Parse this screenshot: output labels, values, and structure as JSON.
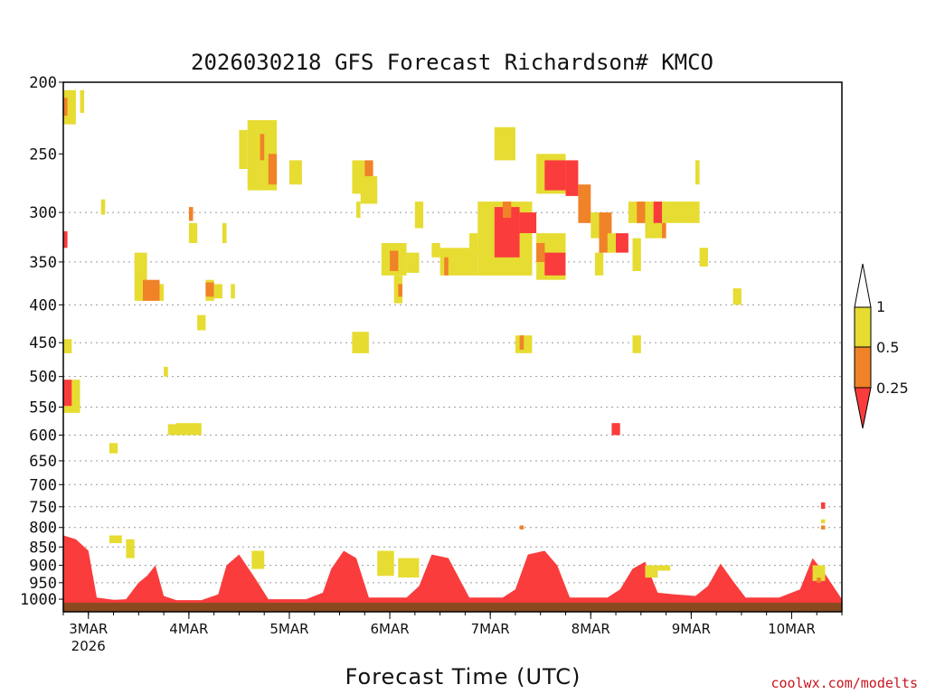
{
  "chart_data": {
    "type": "heatmap",
    "title": "2026030218 GFS Forecast Richardson# KMCO",
    "xlabel": "Forecast Time (UTC)",
    "ylabel": "",
    "credit": "coolwx.com/modelts",
    "y_scale": "log-pressure",
    "y_inverted": true,
    "ylim": [
      1040,
      200
    ],
    "y_ticks": [
      200,
      250,
      300,
      350,
      400,
      450,
      500,
      550,
      600,
      650,
      700,
      750,
      800,
      850,
      900,
      950,
      1000
    ],
    "y_grid": [
      300,
      350,
      400,
      450,
      500,
      550,
      600,
      650,
      700,
      750,
      800,
      850,
      900,
      950
    ],
    "xlim": [
      "2026-03-02T18",
      "2026-03-10T12"
    ],
    "x_ticks": [
      {
        "date": "2026-03-03T00",
        "label": "3MAR",
        "sublabel": "2026"
      },
      {
        "date": "2026-03-04T00",
        "label": "4MAR",
        "sublabel": ""
      },
      {
        "date": "2026-03-05T00",
        "label": "5MAR",
        "sublabel": ""
      },
      {
        "date": "2026-03-06T00",
        "label": "6MAR",
        "sublabel": ""
      },
      {
        "date": "2026-03-07T00",
        "label": "7MAR",
        "sublabel": ""
      },
      {
        "date": "2026-03-08T00",
        "label": "8MAR",
        "sublabel": ""
      },
      {
        "date": "2026-03-09T00",
        "label": "9MAR",
        "sublabel": ""
      },
      {
        "date": "2026-03-10T00",
        "label": "10MAR",
        "sublabel": ""
      }
    ],
    "legend": {
      "placement": "right",
      "thresholds": [
        "1",
        "0.5",
        "0.25"
      ],
      "bins": [
        {
          "range": "above 1",
          "color": "#ffffff"
        },
        {
          "range": "0.5 to 1",
          "color": "#e6dc32"
        },
        {
          "range": "0.25 to 0.5",
          "color": "#f08228"
        },
        {
          "range": "below 0.25",
          "color": "#fa3c3c"
        }
      ]
    },
    "ground_color": "#8b4a1e",
    "colors": {
      "low": "#fa3c3c",
      "mid": "#f08228",
      "high": "#e6dc32"
    },
    "regions": [
      {
        "cls": "high",
        "t0": "2026-03-02T18",
        "t1": "2026-03-02T21",
        "p0": 205,
        "p1": 228
      },
      {
        "cls": "high",
        "t0": "2026-03-02T22",
        "t1": "2026-03-02T23",
        "p0": 205,
        "p1": 220
      },
      {
        "cls": "mid",
        "t0": "2026-03-02T18",
        "t1": "2026-03-02T19",
        "p0": 210,
        "p1": 222
      },
      {
        "cls": "low",
        "t0": "2026-03-02T18",
        "t1": "2026-03-02T19",
        "p0": 318,
        "p1": 335
      },
      {
        "cls": "high",
        "t0": "2026-03-02T18",
        "t1": "2026-03-02T20",
        "p0": 445,
        "p1": 465
      },
      {
        "cls": "high",
        "t0": "2026-03-02T18",
        "t1": "2026-03-02T22",
        "p0": 505,
        "p1": 560
      },
      {
        "cls": "low",
        "t0": "2026-03-02T18",
        "t1": "2026-03-02T20",
        "p0": 505,
        "p1": 548
      },
      {
        "cls": "high",
        "t0": "2026-03-03T03",
        "t1": "2026-03-03T04",
        "p0": 288,
        "p1": 302
      },
      {
        "cls": "high",
        "t0": "2026-03-03T05",
        "t1": "2026-03-03T07",
        "p0": 615,
        "p1": 635
      },
      {
        "cls": "high",
        "t0": "2026-03-03T11",
        "t1": "2026-03-03T14",
        "p0": 340,
        "p1": 395
      },
      {
        "cls": "mid",
        "t0": "2026-03-03T13",
        "t1": "2026-03-03T17",
        "p0": 370,
        "p1": 395
      },
      {
        "cls": "high",
        "t0": "2026-03-03T17",
        "t1": "2026-03-03T18",
        "p0": 375,
        "p1": 395
      },
      {
        "cls": "high",
        "t0": "2026-03-03T18",
        "t1": "2026-03-03T19",
        "p0": 485,
        "p1": 500
      },
      {
        "cls": "high",
        "t0": "2026-03-03T19",
        "t1": "2026-03-03T22",
        "p0": 580,
        "p1": 600
      },
      {
        "cls": "high",
        "t0": "2026-03-03T21",
        "t1": "2026-03-04T03",
        "p0": 578,
        "p1": 600
      },
      {
        "cls": "high",
        "t0": "2026-03-04T00",
        "t1": "2026-03-04T02",
        "p0": 310,
        "p1": 330
      },
      {
        "cls": "mid",
        "t0": "2026-03-04T00",
        "t1": "2026-03-04T01",
        "p0": 295,
        "p1": 308
      },
      {
        "cls": "high",
        "t0": "2026-03-04T02",
        "t1": "2026-03-04T04",
        "p0": 413,
        "p1": 433
      },
      {
        "cls": "high",
        "t0": "2026-03-04T04",
        "t1": "2026-03-04T06",
        "p0": 370,
        "p1": 395
      },
      {
        "cls": "mid",
        "t0": "2026-03-04T04",
        "t1": "2026-03-04T06",
        "p0": 373,
        "p1": 390
      },
      {
        "cls": "high",
        "t0": "2026-03-04T06",
        "t1": "2026-03-04T08",
        "p0": 375,
        "p1": 392
      },
      {
        "cls": "high",
        "t0": "2026-03-04T08",
        "t1": "2026-03-04T09",
        "p0": 310,
        "p1": 330
      },
      {
        "cls": "high",
        "t0": "2026-03-04T10",
        "t1": "2026-03-04T11",
        "p0": 375,
        "p1": 392
      },
      {
        "cls": "high",
        "t0": "2026-03-04T12",
        "t1": "2026-03-04T14",
        "p0": 232,
        "p1": 262
      },
      {
        "cls": "high",
        "t0": "2026-03-04T14",
        "t1": "2026-03-04T21",
        "p0": 225,
        "p1": 280
      },
      {
        "cls": "mid",
        "t0": "2026-03-04T17",
        "t1": "2026-03-04T18",
        "p0": 235,
        "p1": 255
      },
      {
        "cls": "mid",
        "t0": "2026-03-04T19",
        "t1": "2026-03-04T21",
        "p0": 250,
        "p1": 275
      },
      {
        "cls": "high",
        "t0": "2026-03-05T00",
        "t1": "2026-03-05T03",
        "p0": 255,
        "p1": 275
      },
      {
        "cls": "high",
        "t0": "2026-03-05T15",
        "t1": "2026-03-05T18",
        "p0": 255,
        "p1": 283
      },
      {
        "cls": "mid",
        "t0": "2026-03-05T18",
        "t1": "2026-03-05T20",
        "p0": 255,
        "p1": 270
      },
      {
        "cls": "high",
        "t0": "2026-03-05T17",
        "t1": "2026-03-05T21",
        "p0": 268,
        "p1": 292
      },
      {
        "cls": "high",
        "t0": "2026-03-05T16",
        "t1": "2026-03-05T17",
        "p0": 290,
        "p1": 305
      },
      {
        "cls": "high",
        "t0": "2026-03-05T15",
        "t1": "2026-03-05T19",
        "p0": 435,
        "p1": 465
      },
      {
        "cls": "high",
        "t0": "2026-03-05T22",
        "t1": "2026-03-06T04",
        "p0": 330,
        "p1": 365
      },
      {
        "cls": "mid",
        "t0": "2026-03-06T00",
        "t1": "2026-03-06T02",
        "p0": 338,
        "p1": 360
      },
      {
        "cls": "high",
        "t0": "2026-03-06T01",
        "t1": "2026-03-06T03",
        "p0": 365,
        "p1": 398
      },
      {
        "cls": "mid",
        "t0": "2026-03-06T02",
        "t1": "2026-03-06T03",
        "p0": 375,
        "p1": 390
      },
      {
        "cls": "high",
        "t0": "2026-03-06T04",
        "t1": "2026-03-06T07",
        "p0": 340,
        "p1": 362
      },
      {
        "cls": "high",
        "t0": "2026-03-06T06",
        "t1": "2026-03-06T08",
        "p0": 290,
        "p1": 315
      },
      {
        "cls": "high",
        "t0": "2026-03-06T10",
        "t1": "2026-03-06T12",
        "p0": 330,
        "p1": 345
      },
      {
        "cls": "high",
        "t0": "2026-03-06T12",
        "t1": "2026-03-06T21",
        "p0": 335,
        "p1": 365
      },
      {
        "cls": "mid",
        "t0": "2026-03-06T13",
        "t1": "2026-03-06T14",
        "p0": 345,
        "p1": 365
      },
      {
        "cls": "high",
        "t0": "2026-03-06T19",
        "t1": "2026-03-06T21",
        "p0": 320,
        "p1": 340
      },
      {
        "cls": "high",
        "t0": "2026-03-06T21",
        "t1": "2026-03-07T10",
        "p0": 290,
        "p1": 365
      },
      {
        "cls": "low",
        "t0": "2026-03-07T01",
        "t1": "2026-03-07T07",
        "p0": 295,
        "p1": 345
      },
      {
        "cls": "mid",
        "t0": "2026-03-07T03",
        "t1": "2026-03-07T05",
        "p0": 290,
        "p1": 305
      },
      {
        "cls": "low",
        "t0": "2026-03-07T07",
        "t1": "2026-03-07T11",
        "p0": 300,
        "p1": 320
      },
      {
        "cls": "high",
        "t0": "2026-03-07T01",
        "t1": "2026-03-07T06",
        "p0": 230,
        "p1": 255
      },
      {
        "cls": "high",
        "t0": "2026-03-07T11",
        "t1": "2026-03-07T18",
        "p0": 250,
        "p1": 283
      },
      {
        "cls": "low",
        "t0": "2026-03-07T13",
        "t1": "2026-03-07T18",
        "p0": 255,
        "p1": 280
      },
      {
        "cls": "high",
        "t0": "2026-03-07T11",
        "t1": "2026-03-07T18",
        "p0": 320,
        "p1": 370
      },
      {
        "cls": "low",
        "t0": "2026-03-07T13",
        "t1": "2026-03-07T18",
        "p0": 340,
        "p1": 365
      },
      {
        "cls": "mid",
        "t0": "2026-03-07T11",
        "t1": "2026-03-07T13",
        "p0": 330,
        "p1": 350
      },
      {
        "cls": "low",
        "t0": "2026-03-07T18",
        "t1": "2026-03-07T21",
        "p0": 255,
        "p1": 285
      },
      {
        "cls": "mid",
        "t0": "2026-03-07T21",
        "t1": "2026-03-08T00",
        "p0": 275,
        "p1": 310
      },
      {
        "cls": "high",
        "t0": "2026-03-08T00",
        "t1": "2026-03-08T02",
        "p0": 300,
        "p1": 325
      },
      {
        "cls": "high",
        "t0": "2026-03-08T01",
        "t1": "2026-03-08T03",
        "p0": 340,
        "p1": 365
      },
      {
        "cls": "mid",
        "t0": "2026-03-08T02",
        "t1": "2026-03-08T05",
        "p0": 300,
        "p1": 340
      },
      {
        "cls": "high",
        "t0": "2026-03-08T04",
        "t1": "2026-03-08T06",
        "p0": 320,
        "p1": 340
      },
      {
        "cls": "low",
        "t0": "2026-03-08T06",
        "t1": "2026-03-08T09",
        "p0": 320,
        "p1": 340
      },
      {
        "cls": "high",
        "t0": "2026-03-08T09",
        "t1": "2026-03-08T13",
        "p0": 290,
        "p1": 310
      },
      {
        "cls": "mid",
        "t0": "2026-03-08T11",
        "t1": "2026-03-08T13",
        "p0": 290,
        "p1": 310
      },
      {
        "cls": "high",
        "t0": "2026-03-08T13",
        "t1": "2026-03-08T18",
        "p0": 290,
        "p1": 325
      },
      {
        "cls": "low",
        "t0": "2026-03-08T15",
        "t1": "2026-03-08T17",
        "p0": 290,
        "p1": 310
      },
      {
        "cls": "mid",
        "t0": "2026-03-08T17",
        "t1": "2026-03-08T18",
        "p0": 310,
        "p1": 325
      },
      {
        "cls": "high",
        "t0": "2026-03-08T18",
        "t1": "2026-03-09T02",
        "p0": 290,
        "p1": 310
      },
      {
        "cls": "high",
        "t0": "2026-03-09T01",
        "t1": "2026-03-09T02",
        "p0": 255,
        "p1": 275
      },
      {
        "cls": "high",
        "t0": "2026-03-09T10",
        "t1": "2026-03-09T12",
        "p0": 380,
        "p1": 400
      },
      {
        "cls": "high",
        "t0": "2026-03-08T10",
        "t1": "2026-03-08T12",
        "p0": 440,
        "p1": 465
      },
      {
        "cls": "low",
        "t0": "2026-03-08T05",
        "t1": "2026-03-08T07",
        "p0": 578,
        "p1": 600
      },
      {
        "cls": "high",
        "t0": "2026-03-07T06",
        "t1": "2026-03-07T10",
        "p0": 440,
        "p1": 465
      },
      {
        "cls": "mid",
        "t0": "2026-03-07T07",
        "t1": "2026-03-07T08",
        "p0": 440,
        "p1": 460
      },
      {
        "cls": "high",
        "t0": "2026-03-08T10",
        "t1": "2026-03-08T12",
        "p0": 325,
        "p1": 360
      },
      {
        "cls": "high",
        "t0": "2026-03-09T02",
        "t1": "2026-03-09T04",
        "p0": 335,
        "p1": 355
      },
      {
        "cls": "high",
        "t0": "2026-03-10T07",
        "t1": "2026-03-10T08",
        "p0": 780,
        "p1": 790
      },
      {
        "cls": "mid",
        "t0": "2026-03-10T07",
        "t1": "2026-03-10T08",
        "p0": 795,
        "p1": 805
      },
      {
        "cls": "low",
        "t0": "2026-03-10T07",
        "t1": "2026-03-10T08",
        "p0": 740,
        "p1": 755
      },
      {
        "cls": "high",
        "t0": "2026-03-03T05",
        "t1": "2026-03-03T08",
        "p0": 820,
        "p1": 840
      },
      {
        "cls": "high",
        "t0": "2026-03-03T09",
        "t1": "2026-03-03T11",
        "p0": 830,
        "p1": 880
      },
      {
        "cls": "mid",
        "t0": "2026-03-07T07",
        "t1": "2026-03-07T08",
        "p0": 795,
        "p1": 805
      },
      {
        "cls": "high",
        "t0": "2026-03-08T13",
        "t1": "2026-03-08T16",
        "p0": 900,
        "p1": 935
      },
      {
        "cls": "high",
        "t0": "2026-03-08T16",
        "t1": "2026-03-08T19",
        "p0": 900,
        "p1": 915
      },
      {
        "cls": "high",
        "t0": "2026-03-10T05",
        "t1": "2026-03-10T08",
        "p0": 900,
        "p1": 945
      },
      {
        "cls": "mid",
        "t0": "2026-03-10T06",
        "t1": "2026-03-10T07",
        "p0": 935,
        "p1": 950
      },
      {
        "cls": "high",
        "t0": "2026-03-06T02",
        "t1": "2026-03-06T07",
        "p0": 880,
        "p1": 935
      },
      {
        "cls": "high",
        "t0": "2026-03-05T21",
        "t1": "2026-03-06T01",
        "p0": 860,
        "p1": 930
      },
      {
        "cls": "high",
        "t0": "2026-03-04T15",
        "t1": "2026-03-04T18",
        "p0": 860,
        "p1": 910
      }
    ],
    "pbl_envelope_hpa": [
      [
        "2026-03-02T18",
        820
      ],
      [
        "2026-03-02T21",
        830
      ],
      [
        "2026-03-03T00",
        860
      ],
      [
        "2026-03-03T02",
        995
      ],
      [
        "2026-03-03T06",
        1002
      ],
      [
        "2026-03-03T09",
        1000
      ],
      [
        "2026-03-03T12",
        950
      ],
      [
        "2026-03-03T14",
        930
      ],
      [
        "2026-03-03T16",
        900
      ],
      [
        "2026-03-03T18",
        990
      ],
      [
        "2026-03-03T21",
        1003
      ],
      [
        "2026-03-04T03",
        1003
      ],
      [
        "2026-03-04T07",
        985
      ],
      [
        "2026-03-04T09",
        900
      ],
      [
        "2026-03-04T12",
        870
      ],
      [
        "2026-03-04T16",
        940
      ],
      [
        "2026-03-04T19",
        1000
      ],
      [
        "2026-03-05T04",
        1000
      ],
      [
        "2026-03-05T08",
        980
      ],
      [
        "2026-03-05T10",
        910
      ],
      [
        "2026-03-05T13",
        860
      ],
      [
        "2026-03-05T16",
        880
      ],
      [
        "2026-03-05T19",
        995
      ],
      [
        "2026-03-06T04",
        995
      ],
      [
        "2026-03-06T07",
        960
      ],
      [
        "2026-03-06T10",
        870
      ],
      [
        "2026-03-06T14",
        880
      ],
      [
        "2026-03-06T19",
        995
      ],
      [
        "2026-03-07T03",
        995
      ],
      [
        "2026-03-07T06",
        970
      ],
      [
        "2026-03-07T09",
        870
      ],
      [
        "2026-03-07T13",
        860
      ],
      [
        "2026-03-07T16",
        900
      ],
      [
        "2026-03-07T19",
        995
      ],
      [
        "2026-03-08T04",
        995
      ],
      [
        "2026-03-08T07",
        970
      ],
      [
        "2026-03-08T10",
        910
      ],
      [
        "2026-03-08T13",
        890
      ],
      [
        "2026-03-08T16",
        980
      ],
      [
        "2026-03-08T20",
        985
      ],
      [
        "2026-03-09T01",
        990
      ],
      [
        "2026-03-09T04",
        960
      ],
      [
        "2026-03-09T07",
        895
      ],
      [
        "2026-03-09T10",
        945
      ],
      [
        "2026-03-09T13",
        995
      ],
      [
        "2026-03-09T21",
        995
      ],
      [
        "2026-03-10T02",
        970
      ],
      [
        "2026-03-10T05",
        880
      ],
      [
        "2026-03-10T08",
        925
      ],
      [
        "2026-03-10T12",
        1000
      ]
    ]
  }
}
